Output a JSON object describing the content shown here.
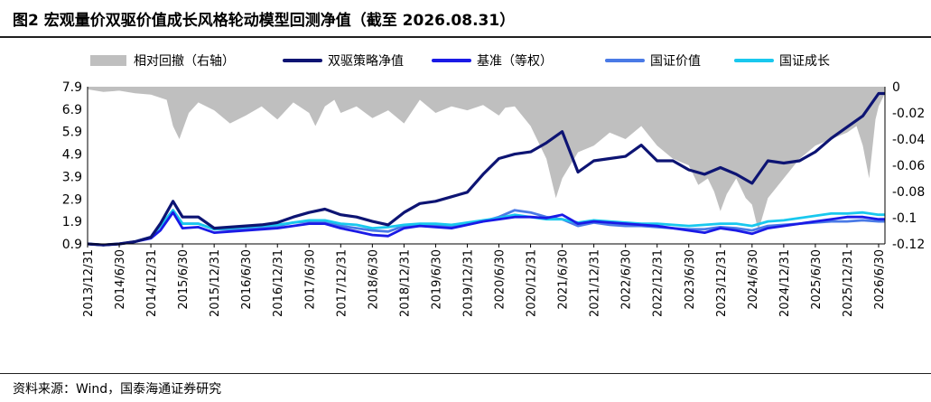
{
  "title": "图2 宏观量价双驱价值成长风格轮动模型回测净值（截至 2026.08.31）",
  "source": "资料来源：Wind，国泰海通证券研究",
  "chart_data": {
    "type": "line",
    "legend": [
      {
        "name": "相对回撤（右轴）",
        "kind": "area",
        "color": "#bfbfbf"
      },
      {
        "name": "双驱策略净值",
        "kind": "line",
        "color": "#0d1473"
      },
      {
        "name": "基准（等权）",
        "kind": "line",
        "color": "#1a1ae6"
      },
      {
        "name": "国证价值",
        "kind": "line",
        "color": "#4a7ae6"
      },
      {
        "name": "国证成长",
        "kind": "line",
        "color": "#19c8ee"
      }
    ],
    "legend_position": "top",
    "x_ticks": [
      "2013/12/31",
      "2014/6/30",
      "2014/12/31",
      "2015/6/30",
      "2015/12/31",
      "2016/6/30",
      "2016/12/31",
      "2017/6/30",
      "2017/12/31",
      "2018/6/30",
      "2018/12/31",
      "2019/6/30",
      "2019/12/31",
      "2020/6/30",
      "2020/12/31",
      "2021/6/30",
      "2021/12/31",
      "2022/6/30",
      "2022/12/31",
      "2023/6/30",
      "2023/12/31",
      "2024/6/30",
      "2024/12/31",
      "2025/6/30",
      "2025/12/31",
      "2026/6/30"
    ],
    "y_left_ticks": [
      "7.9",
      "6.9",
      "5.9",
      "4.9",
      "3.9",
      "2.9",
      "1.9",
      "0.9"
    ],
    "y_left_range": [
      0.9,
      7.9
    ],
    "y_right_ticks": [
      "0",
      "-0.02",
      "-0.04",
      "-0.06",
      "-0.08",
      "-0.1",
      "-0.12"
    ],
    "y_right_range": [
      -0.12,
      0
    ],
    "x_range": [
      0,
      25.2
    ],
    "series": [
      {
        "name": "双驱策略净值",
        "x": [
          0,
          0.5,
          1,
          1.5,
          2,
          2.3,
          2.7,
          3,
          3.5,
          4,
          4.5,
          5,
          5.5,
          6,
          6.5,
          7,
          7.5,
          8,
          8.5,
          9,
          9.5,
          10,
          10.5,
          11,
          11.5,
          12,
          12.5,
          13,
          13.5,
          14,
          14.5,
          15,
          15.5,
          16,
          16.5,
          17,
          17.5,
          18,
          18.5,
          19,
          19.5,
          20,
          20.5,
          21,
          21.5,
          22,
          22.5,
          23,
          23.5,
          24,
          24.5,
          25,
          25.2
        ],
        "values": [
          0.9,
          0.85,
          0.9,
          1.0,
          1.2,
          1.8,
          2.8,
          2.1,
          2.1,
          1.6,
          1.65,
          1.7,
          1.75,
          1.85,
          2.1,
          2.3,
          2.45,
          2.2,
          2.1,
          1.9,
          1.75,
          2.3,
          2.7,
          2.8,
          3.0,
          3.2,
          4.0,
          4.7,
          4.9,
          5.0,
          5.4,
          5.9,
          4.1,
          4.6,
          4.7,
          4.8,
          5.3,
          4.6,
          4.6,
          4.2,
          4.0,
          4.3,
          4.0,
          3.6,
          4.6,
          4.5,
          4.6,
          5.0,
          5.6,
          6.1,
          6.6,
          7.6,
          7.6
        ]
      },
      {
        "name": "基准（等权）",
        "x": [
          0,
          0.5,
          1,
          1.5,
          2,
          2.3,
          2.7,
          3,
          3.5,
          4,
          4.5,
          5,
          5.5,
          6,
          6.5,
          7,
          7.5,
          8,
          8.5,
          9,
          9.5,
          10,
          10.5,
          11,
          11.5,
          12,
          12.5,
          13,
          13.5,
          14,
          14.5,
          15,
          15.5,
          16,
          16.5,
          17,
          17.5,
          18,
          18.5,
          19,
          19.5,
          20,
          20.5,
          21,
          21.5,
          22,
          22.5,
          23,
          23.5,
          24,
          24.5,
          25,
          25.2
        ],
        "values": [
          0.9,
          0.85,
          0.9,
          1.0,
          1.15,
          1.5,
          2.3,
          1.6,
          1.65,
          1.4,
          1.45,
          1.5,
          1.55,
          1.6,
          1.7,
          1.8,
          1.8,
          1.6,
          1.45,
          1.3,
          1.25,
          1.6,
          1.7,
          1.65,
          1.6,
          1.75,
          1.9,
          2.0,
          2.1,
          2.1,
          2.05,
          2.2,
          1.8,
          1.9,
          1.85,
          1.8,
          1.75,
          1.7,
          1.6,
          1.5,
          1.4,
          1.6,
          1.5,
          1.35,
          1.6,
          1.7,
          1.8,
          1.9,
          2.0,
          2.1,
          2.1,
          2.0,
          2.0
        ]
      },
      {
        "name": "国证价值",
        "x": [
          0,
          0.5,
          1,
          1.5,
          2,
          2.3,
          2.7,
          3,
          3.5,
          4,
          4.5,
          5,
          5.5,
          6,
          6.5,
          7,
          7.5,
          8,
          8.5,
          9,
          9.5,
          10,
          10.5,
          11,
          11.5,
          12,
          12.5,
          13,
          13.5,
          14,
          14.5,
          15,
          15.5,
          16,
          16.5,
          17,
          17.5,
          18,
          18.5,
          19,
          19.5,
          20,
          20.5,
          21,
          21.5,
          22,
          22.5,
          23,
          23.5,
          24,
          24.5,
          25,
          25.2
        ],
        "values": [
          0.9,
          0.85,
          0.9,
          1.0,
          1.2,
          1.7,
          2.4,
          1.8,
          1.8,
          1.55,
          1.55,
          1.55,
          1.6,
          1.7,
          1.85,
          1.9,
          1.9,
          1.7,
          1.6,
          1.5,
          1.45,
          1.7,
          1.75,
          1.7,
          1.7,
          1.8,
          1.9,
          2.1,
          2.4,
          2.3,
          2.1,
          2.0,
          1.7,
          1.85,
          1.75,
          1.7,
          1.7,
          1.65,
          1.6,
          1.55,
          1.55,
          1.65,
          1.6,
          1.5,
          1.7,
          1.75,
          1.8,
          1.85,
          1.9,
          1.9,
          1.95,
          1.9,
          1.9
        ]
      },
      {
        "name": "国证成长",
        "x": [
          0,
          0.5,
          1,
          1.5,
          2,
          2.3,
          2.7,
          3,
          3.5,
          4,
          4.5,
          5,
          5.5,
          6,
          6.5,
          7,
          7.5,
          8,
          8.5,
          9,
          9.5,
          10,
          10.5,
          11,
          11.5,
          12,
          12.5,
          13,
          13.5,
          14,
          14.5,
          15,
          15.5,
          16,
          16.5,
          17,
          17.5,
          18,
          18.5,
          19,
          19.5,
          20,
          20.5,
          21,
          21.5,
          22,
          22.5,
          23,
          23.5,
          24,
          24.5,
          25,
          25.2
        ],
        "values": [
          0.9,
          0.85,
          0.9,
          1.0,
          1.2,
          1.7,
          2.4,
          1.8,
          1.8,
          1.55,
          1.6,
          1.65,
          1.7,
          1.75,
          1.85,
          1.95,
          1.95,
          1.8,
          1.75,
          1.6,
          1.65,
          1.75,
          1.8,
          1.8,
          1.75,
          1.85,
          1.95,
          2.05,
          2.2,
          2.1,
          2.0,
          2.0,
          1.85,
          1.95,
          1.9,
          1.85,
          1.8,
          1.8,
          1.75,
          1.7,
          1.75,
          1.8,
          1.8,
          1.7,
          1.9,
          1.95,
          2.05,
          2.15,
          2.25,
          2.25,
          2.3,
          2.2,
          2.2
        ]
      },
      {
        "name": "相对回撤（右轴）",
        "x": [
          0,
          0.5,
          1,
          1.5,
          2,
          2.5,
          2.7,
          2.9,
          3.2,
          3.5,
          4,
          4.5,
          5,
          5.5,
          6,
          6.5,
          7,
          7.2,
          7.5,
          7.8,
          8,
          8.5,
          9,
          9.5,
          10,
          10.5,
          11,
          11.5,
          12,
          12.5,
          13,
          13.2,
          13.5,
          14,
          14.5,
          14.8,
          15,
          15.5,
          16,
          16.5,
          17,
          17.5,
          18,
          18.5,
          19,
          19.3,
          19.6,
          19.8,
          20,
          20.2,
          20.5,
          20.8,
          21,
          21.2,
          21.5,
          22,
          22.5,
          23,
          23.5,
          24,
          24.3,
          24.5,
          24.7,
          24.9,
          25,
          25.2
        ],
        "values": [
          -0.002,
          -0.004,
          -0.003,
          -0.005,
          -0.006,
          -0.01,
          -0.03,
          -0.04,
          -0.02,
          -0.012,
          -0.018,
          -0.028,
          -0.022,
          -0.015,
          -0.025,
          -0.012,
          -0.02,
          -0.03,
          -0.015,
          -0.01,
          -0.02,
          -0.015,
          -0.024,
          -0.018,
          -0.028,
          -0.01,
          -0.02,
          -0.015,
          -0.018,
          -0.014,
          -0.022,
          -0.016,
          -0.015,
          -0.03,
          -0.055,
          -0.085,
          -0.07,
          -0.05,
          -0.045,
          -0.035,
          -0.04,
          -0.03,
          -0.045,
          -0.055,
          -0.06,
          -0.075,
          -0.07,
          -0.08,
          -0.095,
          -0.082,
          -0.07,
          -0.085,
          -0.09,
          -0.11,
          -0.085,
          -0.07,
          -0.055,
          -0.045,
          -0.04,
          -0.035,
          -0.03,
          -0.045,
          -0.07,
          -0.025,
          -0.015,
          -0.005
        ]
      }
    ]
  }
}
